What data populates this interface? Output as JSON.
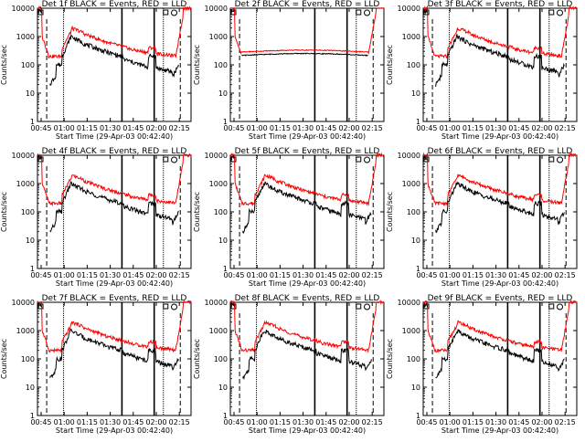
{
  "figure": {
    "background": "#ffffff",
    "series_colors": {
      "events": "#000000",
      "lld": "#ff0000"
    }
  },
  "chart_data": [
    {
      "type": "line",
      "title": "Det 1f BLACK = Events, RED = LLD",
      "xlabel": "Start Time (29-Apr-03 00:42:40)",
      "ylabel": "Counts/sec",
      "x_ticks": [
        "00:45",
        "01:00",
        "01:15",
        "01:30",
        "01:45",
        "02:00",
        "02:15"
      ],
      "y_ticks": [
        "1",
        "10",
        "100",
        "1000",
        "10000"
      ],
      "ylim": [
        1,
        10000
      ],
      "y_scale": "log",
      "markers": [
        0.8,
        1.0,
        1.75,
        2.25,
        2.1,
        2.3
      ]
    },
    {
      "type": "line",
      "title": "Det 2f BLACK = Events, RED = LLD",
      "xlabel": "Start Time (29-Apr-03 00:42:40)",
      "ylabel": "Counts/sec",
      "x_ticks": [
        "00:45",
        "01:00",
        "01:15",
        "01:30",
        "01:45",
        "02:00",
        "02:15"
      ],
      "y_ticks": [
        "1",
        "10",
        "100",
        "1000",
        "10000"
      ],
      "ylim": [
        1,
        10000
      ],
      "y_scale": "log",
      "markers": [
        0.8,
        1.0,
        1.75,
        1.75,
        2.1,
        2.3
      ]
    },
    {
      "type": "line",
      "title": "Det 3f BLACK = Events, RED = LLD",
      "xlabel": "Start Time (29-Apr-03 00:42:40)",
      "ylabel": "Counts/sec",
      "x_ticks": [
        "00:45",
        "01:00",
        "01:15",
        "01:30",
        "01:45",
        "02:00",
        "02:15"
      ],
      "y_ticks": [
        "1",
        "10",
        "100",
        "1000",
        "10000"
      ],
      "ylim": [
        1,
        10000
      ],
      "y_scale": "log",
      "markers": [
        0.8,
        1.0,
        2.0,
        2.0,
        2.1,
        2.3
      ]
    },
    {
      "type": "line",
      "title": "Det 4f BLACK = Events, RED = LLD",
      "xlabel": "Start Time (29-Apr-03 00:42:40)",
      "ylabel": "Counts/sec",
      "x_ticks": [
        "00:45",
        "01:00",
        "01:15",
        "01:30",
        "01:45",
        "02:00",
        "02:15"
      ],
      "y_ticks": [
        "1",
        "10",
        "100",
        "1000",
        "10000"
      ],
      "ylim": [
        1,
        10000
      ],
      "y_scale": "log",
      "markers": [
        0.8,
        1.0,
        1.75,
        2.25,
        2.1,
        2.3
      ]
    },
    {
      "type": "line",
      "title": "Det 5f BLACK = Events, RED = LLD",
      "xlabel": "Start Time (29-Apr-03 00:42:40)",
      "ylabel": "Counts/sec",
      "x_ticks": [
        "00:45",
        "01:00",
        "01:15",
        "01:30",
        "01:45",
        "02:00",
        "02:15"
      ],
      "y_ticks": [
        "1",
        "10",
        "100",
        "1000",
        "10000"
      ],
      "ylim": [
        1,
        10000
      ],
      "y_scale": "log",
      "markers": [
        0.8,
        1.0,
        1.75,
        1.75,
        2.1,
        2.3
      ]
    },
    {
      "type": "line",
      "title": "Det 6f BLACK = Events, RED = LLD",
      "xlabel": "Start Time (29-Apr-03 00:42:40)",
      "ylabel": "Counts/sec",
      "x_ticks": [
        "00:45",
        "01:00",
        "01:15",
        "01:30",
        "01:45",
        "02:00",
        "02:15"
      ],
      "y_ticks": [
        "1",
        "10",
        "100",
        "1000",
        "10000"
      ],
      "ylim": [
        1,
        10000
      ],
      "y_scale": "log",
      "markers": [
        0.8,
        1.0,
        2.0,
        2.0,
        2.1,
        2.3
      ]
    },
    {
      "type": "line",
      "title": "Det 7f BLACK = Events, RED = LLD",
      "xlabel": "Start Time (29-Apr-03 00:42:40)",
      "ylabel": "Counts/sec",
      "x_ticks": [
        "00:45",
        "01:00",
        "01:15",
        "01:30",
        "01:45",
        "02:00",
        "02:15"
      ],
      "y_ticks": [
        "1",
        "10",
        "100",
        "1000",
        "10000"
      ],
      "ylim": [
        1,
        10000
      ],
      "y_scale": "log",
      "markers": [
        0.8,
        1.0,
        1.75,
        2.25,
        2.1,
        2.3
      ]
    },
    {
      "type": "line",
      "title": "Det 8f BLACK = Events, RED = LLD",
      "xlabel": "Start Time (29-Apr-03 00:42:40)",
      "ylabel": "Counts/sec",
      "x_ticks": [
        "00:45",
        "01:00",
        "01:15",
        "01:30",
        "01:45",
        "02:00",
        "02:15"
      ],
      "y_ticks": [
        "1",
        "10",
        "100",
        "1000",
        "10000"
      ],
      "ylim": [
        1,
        10000
      ],
      "y_scale": "log",
      "markers": [
        0.8,
        1.0,
        1.75,
        1.75,
        2.1,
        2.3
      ]
    },
    {
      "type": "line",
      "title": "Det 9f BLACK = Events, RED = LLD",
      "xlabel": "Start Time (29-Apr-03 00:42:40)",
      "ylabel": "Counts/sec",
      "x_ticks": [
        "00:45",
        "01:00",
        "01:15",
        "01:30",
        "01:45",
        "02:00",
        "02:15"
      ],
      "y_ticks": [
        "1",
        "10",
        "100",
        "1000",
        "10000"
      ],
      "ylim": [
        1,
        10000
      ],
      "y_scale": "log",
      "markers": [
        0.8,
        1.0,
        2.0,
        2.0,
        2.1,
        2.3
      ]
    }
  ]
}
